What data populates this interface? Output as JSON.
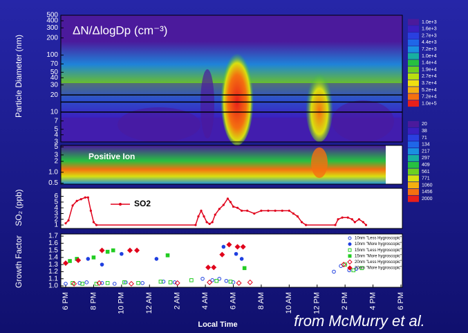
{
  "chart_data": [
    {
      "type": "contour",
      "title": "ΔN/ΔlogDp (cm⁻³)",
      "y_label": "Particle Diameter (nm)",
      "log_y": true,
      "ylim": [
        3,
        500
      ],
      "yticks": [
        500,
        400,
        300,
        200,
        100,
        70,
        50,
        40,
        30,
        20,
        10,
        7,
        5,
        4,
        3
      ],
      "reference_lines": [
        20,
        15,
        10
      ]
    },
    {
      "type": "contour",
      "title": "Positive Ion",
      "log_y": true,
      "ylim": [
        0.47,
        5.5
      ],
      "yticks": [
        5,
        3,
        2,
        {
          "value": 1,
          "label": "1.0"
        },
        0.5
      ]
    },
    {
      "type": "line",
      "y_label": "SO₂ (ppb)",
      "xlim": [
        0,
        24
      ],
      "ylim": [
        0.4,
        7.4
      ],
      "yticks": [
        1,
        2,
        3,
        4,
        5,
        6
      ],
      "series": [
        {
          "name": "SO2",
          "color": "#e0001b",
          "x": [
            0,
            0.2,
            0.5,
            0.8,
            1.1,
            1.4,
            1.6,
            1.8,
            2.0,
            2.2,
            9.3,
            9.5,
            9.7,
            9.9,
            10.1,
            10.3,
            10.5,
            10.7,
            11.0,
            11.3,
            11.6,
            11.8,
            12.0,
            12.3,
            12.6,
            13,
            13.5,
            14,
            14.5,
            15,
            15.5,
            16,
            16.3,
            16.6,
            16.9,
            17.2,
            19.3,
            19.5,
            19.8,
            20.2,
            20.5,
            20.7,
            21,
            21.3,
            21.5
          ],
          "values": [
            1.3,
            1.8,
            4.4,
            5.2,
            5.5,
            5.8,
            5.8,
            3.5,
            1.5,
            1,
            1,
            2.5,
            3.5,
            2.5,
            1.5,
            1.2,
            1.5,
            2.8,
            3.8,
            4.5,
            5.6,
            5.0,
            4.2,
            4.0,
            3.5,
            3.5,
            3.0,
            3.5,
            3.5,
            3.5,
            3.5,
            3.5,
            3.0,
            2.5,
            1.5,
            1,
            1,
            2.0,
            2.3,
            2.3,
            2.0,
            1.5,
            2.0,
            1.5,
            1
          ]
        }
      ]
    },
    {
      "type": "scatter",
      "y_label": "Growth Factor",
      "x_label": "Local Time",
      "xlim": [
        0,
        24
      ],
      "ylim": [
        0.98,
        1.73
      ],
      "yticks": [
        {
          "value": 1.0,
          "label": "1.0"
        },
        1.1,
        1.2,
        1.3,
        1.4,
        1.5,
        1.6,
        1.7
      ],
      "xticks": [
        {
          "value": 0,
          "label": "6 PM"
        },
        {
          "value": 2,
          "label": "8 PM"
        },
        {
          "value": 4,
          "label": "10 PM"
        },
        {
          "value": 6,
          "label": "12 AM"
        },
        {
          "value": 8,
          "label": "2 AM"
        },
        {
          "value": 10,
          "label": "4 AM"
        },
        {
          "value": 12,
          "label": "6 AM"
        },
        {
          "value": 14,
          "label": "8 AM"
        },
        {
          "value": 16,
          "label": "10 AM"
        },
        {
          "value": 18,
          "label": "12 PM"
        },
        {
          "value": 20,
          "label": "2 PM"
        },
        {
          "value": 22,
          "label": "4 PM"
        },
        {
          "value": 24,
          "label": "6 PM"
        }
      ],
      "series": [
        {
          "name": "10nm \"Less Hygroscopic\"",
          "color": "#1f3fe0",
          "marker": "circle",
          "filled": false,
          "x": [
            0,
            1,
            1.5,
            2.6,
            3.5,
            4.3,
            5.5,
            7,
            7.8,
            9.8,
            10.5,
            11,
            11.5,
            12,
            19.2,
            19.7,
            20.3,
            20.8
          ],
          "values": [
            1.03,
            1.04,
            1.05,
            1.04,
            1.03,
            1.05,
            1.04,
            1.06,
            1.05,
            1.1,
            1.08,
            1.1,
            1.07,
            1.05,
            1.2,
            1.28,
            1.22,
            1.24
          ]
        },
        {
          "name": "10nm \"More hygroscopic\"",
          "color": "#1f3fe0",
          "marker": "circle",
          "filled": true,
          "x": [
            1.6,
            2.6,
            4,
            6.5,
            11.3,
            12.2,
            12.6
          ],
          "values": [
            1.38,
            1.3,
            1.45,
            1.38,
            1.55,
            1.45,
            1.38
          ]
        },
        {
          "name": "15nm \"Less Hygroscopic\"",
          "color": "#22cc22",
          "marker": "square",
          "filled": false,
          "x": [
            0.5,
            1.2,
            2.2,
            3,
            4.2,
            5.2,
            6.8,
            7.5,
            9,
            10.8,
            11.8,
            20,
            20.6,
            21.2
          ],
          "values": [
            1.04,
            1.03,
            1.03,
            1.04,
            1.05,
            1.04,
            1.06,
            1.05,
            1.08,
            1.07,
            1.06,
            1.3,
            1.22,
            1.25
          ]
        },
        {
          "name": "15nm \"More hygroscopic\"",
          "color": "#22cc22",
          "marker": "square",
          "filled": true,
          "x": [
            0.3,
            0.8,
            2,
            3,
            3.4,
            7.3,
            12.8
          ],
          "values": [
            1.35,
            1.38,
            1.4,
            1.48,
            1.5,
            1.43,
            1.25
          ]
        },
        {
          "name": "20nm \"Less Hygroscopic\"",
          "color": "#e0001b",
          "marker": "diamond",
          "filled": false,
          "x": [
            0.6,
            2.4,
            4.7,
            8,
            10.3,
            12.4,
            13.2,
            19.9
          ],
          "values": [
            1.03,
            1.04,
            1.03,
            1.04,
            1.05,
            1.04,
            1.05,
            1.3
          ]
        },
        {
          "name": "20nm \"More hygroscopic\"",
          "color": "#e0001b",
          "marker": "diamond",
          "filled": true,
          "x": [
            0,
            0.9,
            2.6,
            4.6,
            5.1,
            10.2,
            10.6,
            11.2,
            11.7,
            12.3,
            12.7
          ],
          "values": [
            1.32,
            1.36,
            1.5,
            1.5,
            1.5,
            1.26,
            1.26,
            1.44,
            1.58,
            1.55,
            1.55
          ]
        }
      ]
    }
  ],
  "colorbars": [
    {
      "labels": [
        "1.0e+3",
        "1.6e+3",
        "2.7e+3",
        "4.4e+3",
        "7.2e+3",
        "1.0e+4",
        "1.4e+4",
        "1.9e+4",
        "2.7e+4",
        "3.7e+4",
        "5.2e+4",
        "7.2e+4",
        "1.0e+5"
      ],
      "colors": [
        "#4b1a9c",
        "#3a1fc0",
        "#2a3fe0",
        "#1f66e8",
        "#1a8fe0",
        "#17b0a0",
        "#27c040",
        "#6dd020",
        "#b8e010",
        "#f0e010",
        "#f4b010",
        "#f47010",
        "#e8201a"
      ]
    },
    {
      "labels": [
        "20",
        "38",
        "71",
        "134",
        "217",
        "297",
        "409",
        "561",
        "771",
        "1060",
        "1456",
        "2000"
      ],
      "colors": [
        "#4b1a9c",
        "#3a1fc0",
        "#2a3fe0",
        "#1f66e8",
        "#1a8fe0",
        "#17b0a0",
        "#27c040",
        "#6dd020",
        "#d8e010",
        "#f4b010",
        "#f47010",
        "#e8201a"
      ]
    }
  ],
  "source": "from McMurry et al."
}
